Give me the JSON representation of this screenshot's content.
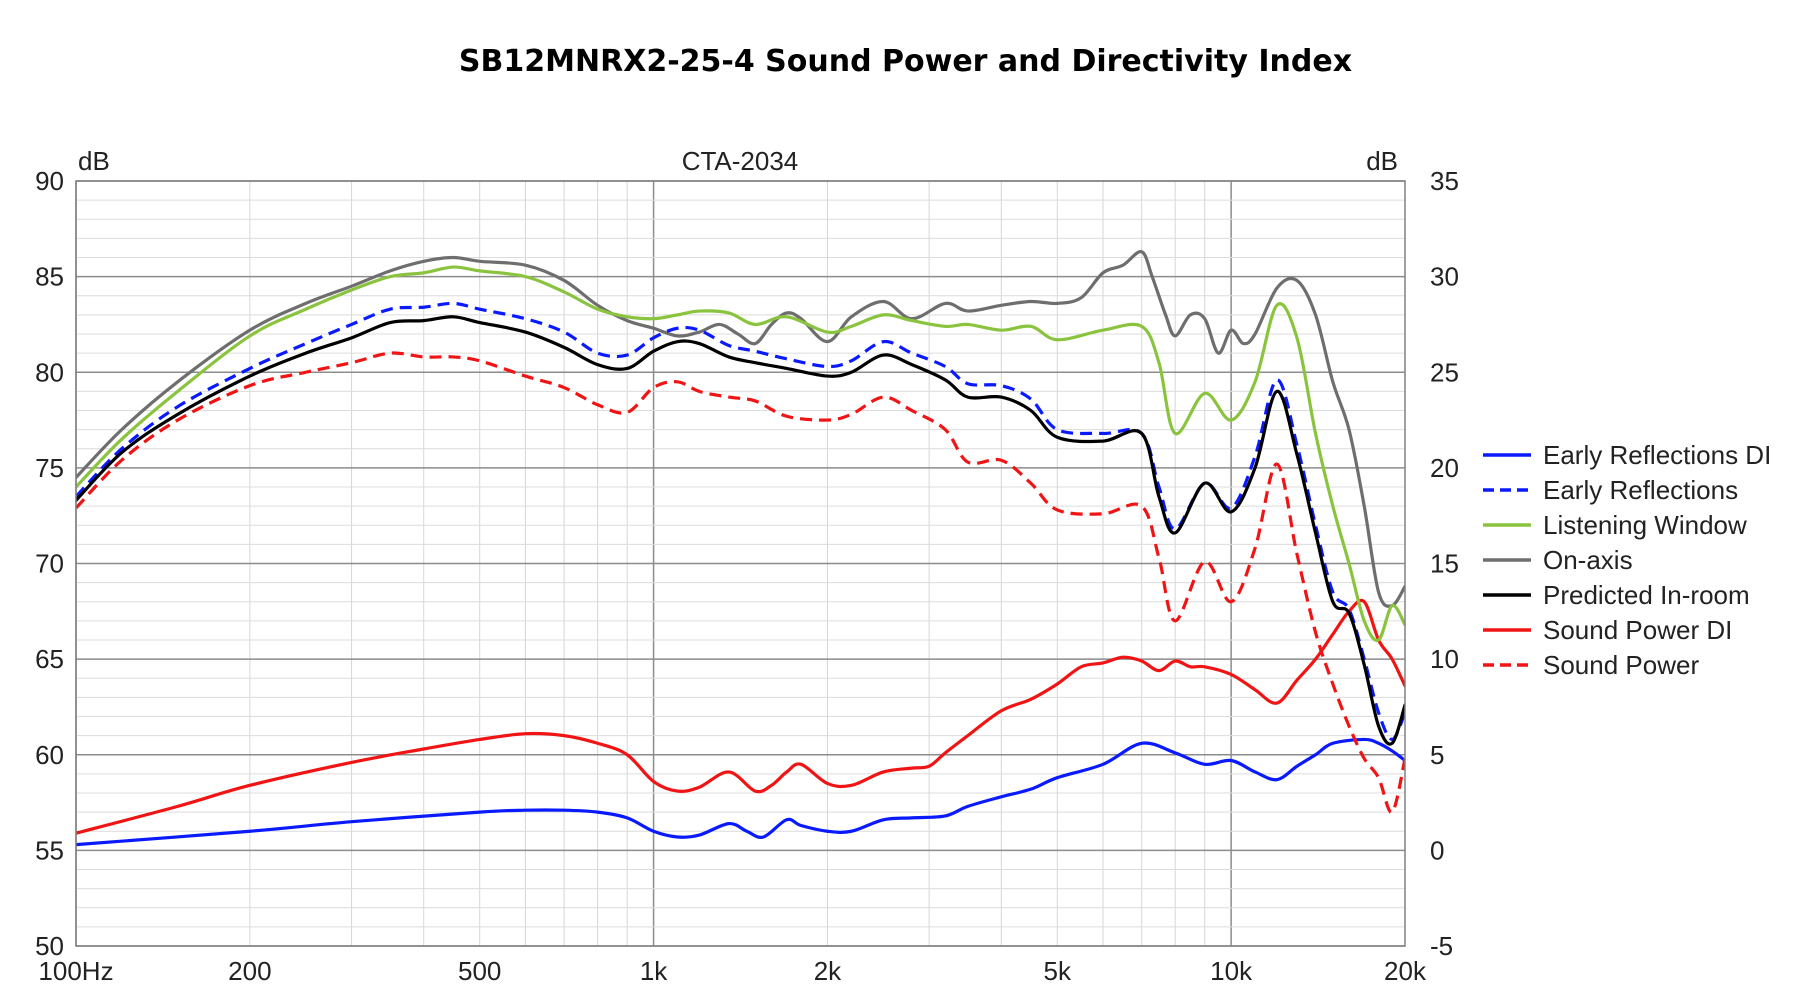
{
  "chart_data": {
    "type": "line",
    "title": "SB12MNRX2-25-4 Sound Power and Directivity Index",
    "subtitle": "CTA-2034",
    "ylabel_left": "dB",
    "ylabel_right": "dB",
    "x_scale": "log",
    "xlim": [
      100,
      20000
    ],
    "ylim_left": [
      50,
      90
    ],
    "ylim_right": [
      -5,
      35
    ],
    "x_ticks": [
      {
        "value": 100,
        "label": "100Hz"
      },
      {
        "value": 200,
        "label": "200"
      },
      {
        "value": 500,
        "label": "500"
      },
      {
        "value": 1000,
        "label": "1k"
      },
      {
        "value": 2000,
        "label": "2k"
      },
      {
        "value": 5000,
        "label": "5k"
      },
      {
        "value": 10000,
        "label": "10k"
      },
      {
        "value": 20000,
        "label": "20k"
      }
    ],
    "y_ticks_left": [
      "90",
      "85",
      "80",
      "75",
      "70",
      "65",
      "60",
      "55",
      "50"
    ],
    "y_ticks_right": [
      "35",
      "30",
      "25",
      "20",
      "15",
      "10",
      "5",
      "0",
      "-5"
    ],
    "grid": true,
    "legend_position": "right",
    "series": [
      {
        "name": "Early Reflections DI",
        "color": "#0a1aff",
        "dash": "solid",
        "axis": "right",
        "x": [
          100,
          200,
          300,
          500,
          600,
          700,
          800,
          900,
          1000,
          1100,
          1200,
          1350,
          1450,
          1550,
          1700,
          1800,
          2000,
          2200,
          2500,
          2800,
          3200,
          3500,
          4000,
          4500,
          5000,
          6000,
          7000,
          8000,
          9000,
          10000,
          11000,
          12000,
          13000,
          14000,
          15000,
          17000,
          18000,
          19000,
          20000
        ],
        "y": [
          0.3,
          1.0,
          1.5,
          2.0,
          2.1,
          2.1,
          2.0,
          1.7,
          1.0,
          0.7,
          0.8,
          1.4,
          1.0,
          0.7,
          1.6,
          1.3,
          1.0,
          1.0,
          1.6,
          1.7,
          1.8,
          2.3,
          2.8,
          3.2,
          3.8,
          4.5,
          5.6,
          5.1,
          4.5,
          4.7,
          4.1,
          3.7,
          4.4,
          5.0,
          5.6,
          5.8,
          5.6,
          5.2,
          4.7
        ]
      },
      {
        "name": "Early Reflections",
        "color": "#0a1aff",
        "dash": "dash",
        "axis": "left",
        "x": [
          100,
          120,
          150,
          200,
          250,
          300,
          350,
          400,
          450,
          500,
          600,
          700,
          800,
          900,
          1000,
          1100,
          1200,
          1350,
          1500,
          1700,
          2000,
          2200,
          2500,
          2800,
          3200,
          3500,
          4000,
          4500,
          5000,
          6000,
          7000,
          7500,
          8000,
          9000,
          10000,
          11000,
          12000,
          13000,
          14000,
          15000,
          16000,
          17000,
          18000,
          19000,
          20000
        ],
        "y": [
          73.5,
          76.0,
          78.2,
          80.2,
          81.5,
          82.5,
          83.3,
          83.4,
          83.6,
          83.3,
          82.8,
          82.1,
          81.0,
          80.9,
          81.8,
          82.3,
          82.2,
          81.4,
          81.1,
          80.7,
          80.3,
          80.6,
          81.6,
          81.0,
          80.3,
          79.4,
          79.3,
          78.6,
          77.0,
          76.8,
          76.8,
          74.0,
          71.8,
          74.2,
          72.9,
          75.6,
          79.6,
          76.2,
          72.0,
          68.5,
          67.6,
          65.0,
          62.2,
          60.8,
          62.2
        ]
      },
      {
        "name": "Listening Window",
        "color": "#8ac43f",
        "dash": "solid",
        "axis": "left",
        "x": [
          100,
          120,
          150,
          200,
          250,
          300,
          350,
          400,
          450,
          500,
          600,
          700,
          800,
          900,
          1000,
          1100,
          1200,
          1350,
          1500,
          1700,
          2000,
          2200,
          2500,
          2800,
          3200,
          3500,
          4000,
          4500,
          5000,
          6000,
          7000,
          7500,
          8000,
          9000,
          10000,
          11000,
          12000,
          13000,
          14000,
          15000,
          16000,
          17000,
          18000,
          19000,
          20000
        ],
        "y": [
          74.0,
          76.5,
          79.0,
          81.9,
          83.3,
          84.3,
          85.0,
          85.2,
          85.5,
          85.3,
          85.0,
          84.2,
          83.3,
          82.9,
          82.8,
          83.0,
          83.2,
          83.1,
          82.5,
          82.9,
          82.1,
          82.4,
          83.0,
          82.7,
          82.4,
          82.5,
          82.2,
          82.4,
          81.7,
          82.2,
          82.4,
          80.5,
          76.8,
          78.9,
          77.5,
          79.5,
          83.5,
          81.8,
          76.8,
          73.0,
          70.0,
          67.0,
          66.0,
          67.8,
          66.8
        ]
      },
      {
        "name": "On-axis",
        "color": "#6e6e6e",
        "dash": "solid",
        "axis": "left",
        "x": [
          100,
          120,
          150,
          200,
          250,
          300,
          350,
          400,
          450,
          500,
          600,
          700,
          800,
          900,
          1000,
          1100,
          1200,
          1300,
          1400,
          1500,
          1600,
          1700,
          1800,
          2000,
          2200,
          2500,
          2800,
          3200,
          3500,
          4000,
          4500,
          5000,
          5500,
          6000,
          6500,
          7000,
          7300,
          7700,
          8000,
          8500,
          9000,
          9500,
          10000,
          10500,
          11000,
          12000,
          13000,
          14000,
          15000,
          16000,
          17000,
          18000,
          19000,
          20000
        ],
        "y": [
          74.5,
          77.0,
          79.5,
          82.2,
          83.6,
          84.5,
          85.3,
          85.8,
          86.0,
          85.8,
          85.6,
          84.8,
          83.5,
          82.7,
          82.3,
          81.9,
          82.1,
          82.5,
          82.0,
          81.5,
          82.5,
          83.1,
          82.8,
          81.6,
          82.9,
          83.7,
          82.8,
          83.6,
          83.2,
          83.5,
          83.7,
          83.6,
          83.9,
          85.2,
          85.6,
          86.3,
          85.0,
          83.0,
          81.9,
          83.0,
          82.8,
          81.0,
          82.2,
          81.5,
          82.0,
          84.4,
          84.8,
          83.0,
          79.5,
          77.0,
          73.0,
          68.5,
          67.8,
          68.8
        ]
      },
      {
        "name": "Predicted In-room",
        "color": "#000000",
        "dash": "solid",
        "axis": "left",
        "x": [
          100,
          120,
          150,
          200,
          250,
          300,
          350,
          400,
          450,
          500,
          600,
          700,
          800,
          900,
          1000,
          1100,
          1200,
          1350,
          1500,
          1700,
          2000,
          2200,
          2500,
          2800,
          3200,
          3500,
          4000,
          4500,
          5000,
          6000,
          7000,
          7500,
          8000,
          9000,
          10000,
          11000,
          12000,
          13000,
          14000,
          15000,
          16000,
          17000,
          18000,
          19000,
          20000
        ],
        "y": [
          73.3,
          75.8,
          77.8,
          79.8,
          81.0,
          81.8,
          82.6,
          82.7,
          82.9,
          82.6,
          82.1,
          81.3,
          80.4,
          80.2,
          81.1,
          81.6,
          81.5,
          80.8,
          80.5,
          80.2,
          79.8,
          80.0,
          80.9,
          80.4,
          79.6,
          78.7,
          78.7,
          78.0,
          76.6,
          76.4,
          76.8,
          73.5,
          71.6,
          74.2,
          72.7,
          75.0,
          79.0,
          75.7,
          71.6,
          68.0,
          67.4,
          64.7,
          61.5,
          60.6,
          62.6
        ]
      },
      {
        "name": "Sound Power DI",
        "color": "#f01414",
        "dash": "solid",
        "axis": "right",
        "x": [
          100,
          150,
          200,
          300,
          400,
          500,
          600,
          700,
          800,
          900,
          1000,
          1100,
          1200,
          1350,
          1500,
          1600,
          1700,
          1800,
          2000,
          2200,
          2500,
          2800,
          3000,
          3200,
          3500,
          4000,
          4500,
          5000,
          5500,
          6000,
          6500,
          7000,
          7500,
          8000,
          8500,
          9000,
          10000,
          11000,
          12000,
          13000,
          14000,
          15000,
          16000,
          17000,
          18000,
          19000,
          20000
        ],
        "y": [
          0.9,
          2.3,
          3.4,
          4.6,
          5.3,
          5.8,
          6.1,
          6.0,
          5.6,
          5.0,
          3.6,
          3.1,
          3.3,
          4.1,
          3.1,
          3.4,
          4.1,
          4.5,
          3.5,
          3.4,
          4.1,
          4.3,
          4.4,
          5.1,
          6.0,
          7.3,
          7.9,
          8.7,
          9.6,
          9.8,
          10.1,
          9.9,
          9.4,
          9.9,
          9.6,
          9.6,
          9.2,
          8.4,
          7.7,
          8.9,
          10.0,
          11.3,
          12.5,
          13.0,
          11.0,
          10.0,
          8.6
        ]
      },
      {
        "name": "Sound Power",
        "color": "#f01414",
        "dash": "dash",
        "axis": "left",
        "x": [
          100,
          120,
          150,
          200,
          250,
          300,
          350,
          400,
          450,
          500,
          600,
          700,
          800,
          900,
          1000,
          1100,
          1200,
          1350,
          1500,
          1700,
          2000,
          2200,
          2500,
          2800,
          3200,
          3500,
          4000,
          4500,
          5000,
          6000,
          7000,
          7500,
          8000,
          9000,
          10000,
          11000,
          12000,
          13000,
          14000,
          15000,
          16000,
          17000,
          18000,
          19000,
          20000
        ],
        "y": [
          72.9,
          75.4,
          77.5,
          79.3,
          80.0,
          80.5,
          81.0,
          80.8,
          80.8,
          80.6,
          79.8,
          79.2,
          78.3,
          77.9,
          79.2,
          79.5,
          79.0,
          78.7,
          78.5,
          77.7,
          77.5,
          77.8,
          78.7,
          78.0,
          77.0,
          75.3,
          75.4,
          74.2,
          72.8,
          72.6,
          73.0,
          70.3,
          67.0,
          70.1,
          68.0,
          70.8,
          75.2,
          70.5,
          66.4,
          63.7,
          61.5,
          59.8,
          58.8,
          57.0,
          59.8
        ]
      }
    ]
  }
}
